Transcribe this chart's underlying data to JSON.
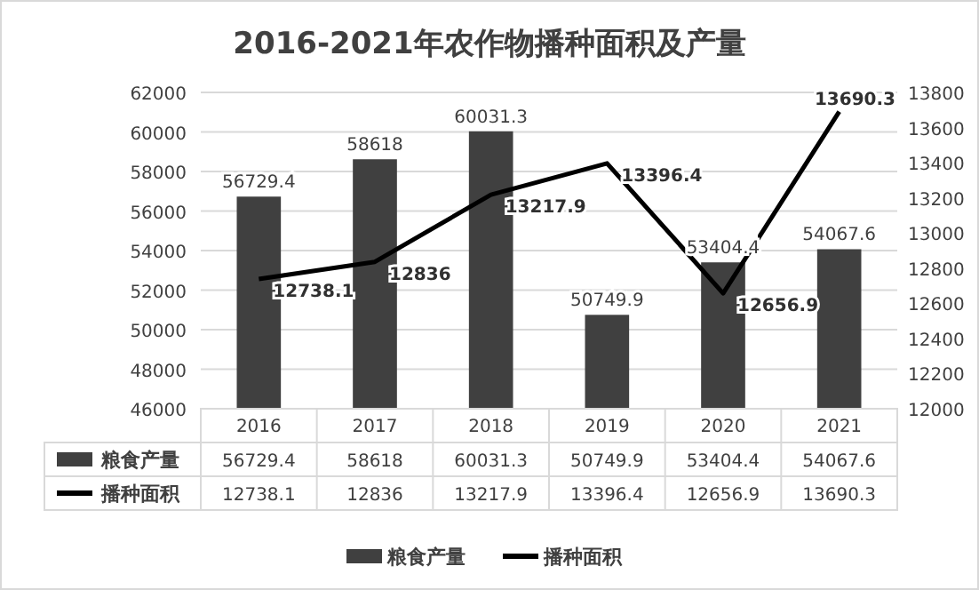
{
  "chart_data": {
    "type": "bar",
    "title": "2016-2021年农作物播种面积及产量",
    "categories": [
      "2016",
      "2017",
      "2018",
      "2019",
      "2020",
      "2021"
    ],
    "series": [
      {
        "name": "粮食产量",
        "color": "#404040",
        "values": [
          56729.4,
          58618,
          60031.3,
          50749.9,
          53404.4,
          54067.6
        ],
        "value_labels": [
          "56729.4",
          "58618",
          "60031.3",
          "50749.9",
          "53404.4",
          "54067.6"
        ]
      },
      {
        "name": "播种面积",
        "type": "line",
        "axis": "y2",
        "color": "#000000",
        "values": [
          12738.1,
          12836,
          13217.9,
          13396.4,
          12656.9,
          13690.3
        ],
        "value_labels": [
          "12738.1",
          "12836",
          "13217.9",
          "13396.4",
          "12656.9",
          "13690.3"
        ]
      }
    ],
    "annotations": [
      "56729.4",
      "58618",
      "60031.3",
      "50749.9",
      "53404.4",
      "54067.6",
      "12738.1",
      "12836",
      "13217.9",
      "13396.4",
      "12656.9",
      "13690.3"
    ],
    "ylim": [
      46000,
      62000
    ],
    "yticks": [
      46000,
      48000,
      50000,
      52000,
      54000,
      56000,
      58000,
      60000,
      62000
    ],
    "y2lim": [
      12000,
      13800
    ],
    "y2ticks": [
      12000,
      12200,
      12400,
      12600,
      12800,
      13000,
      13200,
      13400,
      13600,
      13800
    ],
    "grid": "y",
    "legend": "bottom",
    "marker": "none",
    "line_style": "solid"
  }
}
